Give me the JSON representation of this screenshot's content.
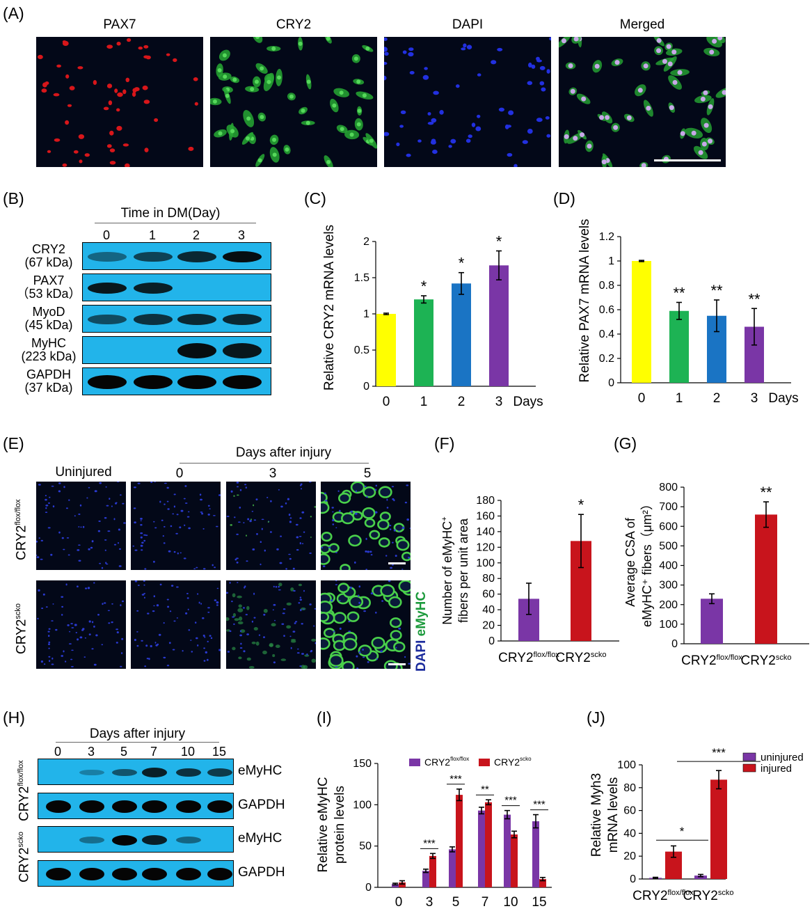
{
  "panels": {
    "A": {
      "letter": "(A)",
      "titles": [
        "PAX7",
        "CRY2",
        "DAPI",
        "Merged"
      ]
    },
    "B": {
      "letter": "(B)",
      "header": "Time in DM(Day)",
      "days": [
        "0",
        "1",
        "2",
        "3"
      ],
      "rows": [
        {
          "name": "CRY2",
          "kda": "(67 kDa)",
          "bands": [
            0.45,
            0.65,
            0.8,
            0.95
          ]
        },
        {
          "name": "PAX7",
          "kda": "（53 kDa）",
          "bands": [
            0.9,
            0.85,
            0,
            0
          ]
        },
        {
          "name": "MyoD",
          "kda": "(45 kDa)",
          "bands": [
            0.6,
            0.75,
            0.8,
            0.8
          ]
        },
        {
          "name": "MyHC",
          "kda": "(223 kDa)",
          "bands": [
            0,
            0,
            0.95,
            0.9
          ]
        },
        {
          "name": "GAPDH",
          "kda": "(37 kDa)",
          "bands": [
            1,
            1,
            1,
            1
          ]
        }
      ]
    },
    "E": {
      "letter": "(E)",
      "header": "Days after injury",
      "columns": [
        "Uninjured",
        "0",
        "3",
        "5"
      ],
      "row_labels": [
        {
          "base": "CRY2",
          "sup": "flox/flox"
        },
        {
          "base": "CRY2",
          "sup": "scko"
        }
      ],
      "stain_dapi": "DAPI",
      "stain_emyhc": "eMyHC"
    },
    "H": {
      "letter": "(H)",
      "header": "Days after injury",
      "days": [
        "0",
        "3",
        "5",
        "7",
        "10",
        "15"
      ],
      "groups": [
        {
          "label_base": "CRY2",
          "label_sup": "flox/flox",
          "rows": [
            {
              "name": "eMyHC",
              "bands": [
                0,
                0.3,
                0.55,
                0.85,
                0.75,
                0.7
              ]
            },
            {
              "name": "GAPDH",
              "bands": [
                1,
                1,
                1,
                1,
                1,
                1
              ]
            }
          ]
        },
        {
          "label_base": "CRY2",
          "label_sup": "scko",
          "rows": [
            {
              "name": "eMyHC",
              "bands": [
                0,
                0.4,
                1,
                0.85,
                0.45,
                0
              ]
            },
            {
              "name": "GAPDH",
              "bands": [
                1,
                1,
                1,
                1,
                1,
                1
              ]
            }
          ]
        }
      ]
    }
  },
  "chart_data": [
    {
      "id": "C",
      "letter": "(C)",
      "type": "bar",
      "categories": [
        "0",
        "1",
        "2",
        "3"
      ],
      "values": [
        1.0,
        1.2,
        1.42,
        1.67
      ],
      "errors": [
        0.01,
        0.05,
        0.15,
        0.2
      ],
      "significance": [
        "",
        "*",
        "*",
        "*"
      ],
      "colors": [
        "#ffff00",
        "#1db354",
        "#1a74c4",
        "#7a36a6"
      ],
      "ylabel": "Relative CRY2 mRNA levels",
      "xunit": "Days",
      "ylim": [
        0,
        2
      ],
      "yticks": [
        0,
        0.5,
        1,
        1.5,
        2
      ],
      "yticklabels": [
        "0",
        "0.5",
        "1",
        "1.5",
        "2"
      ]
    },
    {
      "id": "D",
      "letter": "(D)",
      "type": "bar",
      "categories": [
        "0",
        "1",
        "2",
        "3"
      ],
      "values": [
        1.0,
        0.59,
        0.55,
        0.46
      ],
      "errors": [
        0.005,
        0.07,
        0.13,
        0.15
      ],
      "significance": [
        "",
        "**",
        "**",
        "**"
      ],
      "colors": [
        "#ffff00",
        "#1db354",
        "#1a74c4",
        "#7a36a6"
      ],
      "ylabel": "Relative PAX7 mRNA levels",
      "xunit": "Days",
      "ylim": [
        0,
        1.2
      ],
      "yticks": [
        0,
        0.2,
        0.4,
        0.6,
        0.8,
        1,
        1.2
      ],
      "yticklabels": [
        "0",
        "0.2",
        "0.4",
        "0.6",
        "0.8",
        "1",
        "1.2"
      ]
    },
    {
      "id": "F",
      "letter": "(F)",
      "type": "bar",
      "categories": [
        {
          "base": "CRY2",
          "sup": "flox/flox"
        },
        {
          "base": "CRY2",
          "sup": "scko"
        }
      ],
      "values": [
        54,
        128
      ],
      "errors": [
        20,
        34
      ],
      "significance": [
        "",
        "*"
      ],
      "colors": [
        "#7a36a6",
        "#c8141c"
      ],
      "ylabel_lines": [
        "Number of eMyHC",
        "fibers per unit area"
      ],
      "ylabel_sup": "+",
      "ylim": [
        0,
        180
      ],
      "yticks": [
        0,
        20,
        40,
        60,
        80,
        100,
        120,
        140,
        160,
        180
      ]
    },
    {
      "id": "G",
      "letter": "(G)",
      "type": "bar",
      "categories": [
        {
          "base": "CRY2",
          "sup": "flox/flox"
        },
        {
          "base": "CRY2",
          "sup": "scko"
        }
      ],
      "values": [
        230,
        660
      ],
      "errors": [
        25,
        65
      ],
      "significance": [
        "",
        "**"
      ],
      "colors": [
        "#7a36a6",
        "#c8141c"
      ],
      "ylabel_lines": [
        "Average  CSA of",
        "eMyHC⁺ fibers（μm²）"
      ],
      "ylim": [
        0,
        800
      ],
      "yticks": [
        0,
        100,
        200,
        300,
        400,
        500,
        600,
        700,
        800
      ]
    },
    {
      "id": "I",
      "letter": "(I)",
      "type": "bar",
      "categories": [
        "0",
        "3",
        "5",
        "7",
        "10",
        "15"
      ],
      "series": [
        {
          "name_base": "CRY2",
          "name_sup": "flox/flox",
          "color": "#7a36a6",
          "values": [
            4,
            20,
            46,
            93,
            88,
            80
          ],
          "errors": [
            1,
            2,
            3,
            4,
            5,
            8
          ]
        },
        {
          "name_base": "CRY2",
          "name_sup": "scko",
          "color": "#c8141c",
          "values": [
            6,
            38,
            112,
            103,
            64,
            10
          ],
          "errors": [
            2,
            3,
            7,
            3,
            4,
            2
          ]
        }
      ],
      "significance": [
        "",
        "***",
        "***",
        "**",
        "***",
        "***"
      ],
      "ylabel_lines": [
        "Relative eMyHC",
        "protein  levels"
      ],
      "ylim": [
        0,
        150
      ],
      "yticks": [
        0,
        50,
        100,
        150
      ]
    },
    {
      "id": "J",
      "letter": "(J)",
      "type": "bar",
      "categories": [
        {
          "base": "CRY2",
          "sup": "flox/flox"
        },
        {
          "base": "CRY2",
          "sup": "scko"
        }
      ],
      "series": [
        {
          "name": "uninjured",
          "color": "#7a36a6",
          "values": [
            1,
            3
          ],
          "errors": [
            0.5,
            1
          ]
        },
        {
          "name": "injured",
          "color": "#c8141c",
          "values": [
            24,
            87
          ],
          "errors": [
            5,
            8
          ]
        }
      ],
      "brackets": [
        {
          "label": "*"
        },
        {
          "label": "***"
        }
      ],
      "ylabel_lines": [
        "Relative Myh3",
        "mRNA  levels"
      ],
      "ylim": [
        0,
        100
      ],
      "yticks": [
        0,
        20,
        40,
        60,
        80,
        100
      ]
    }
  ]
}
